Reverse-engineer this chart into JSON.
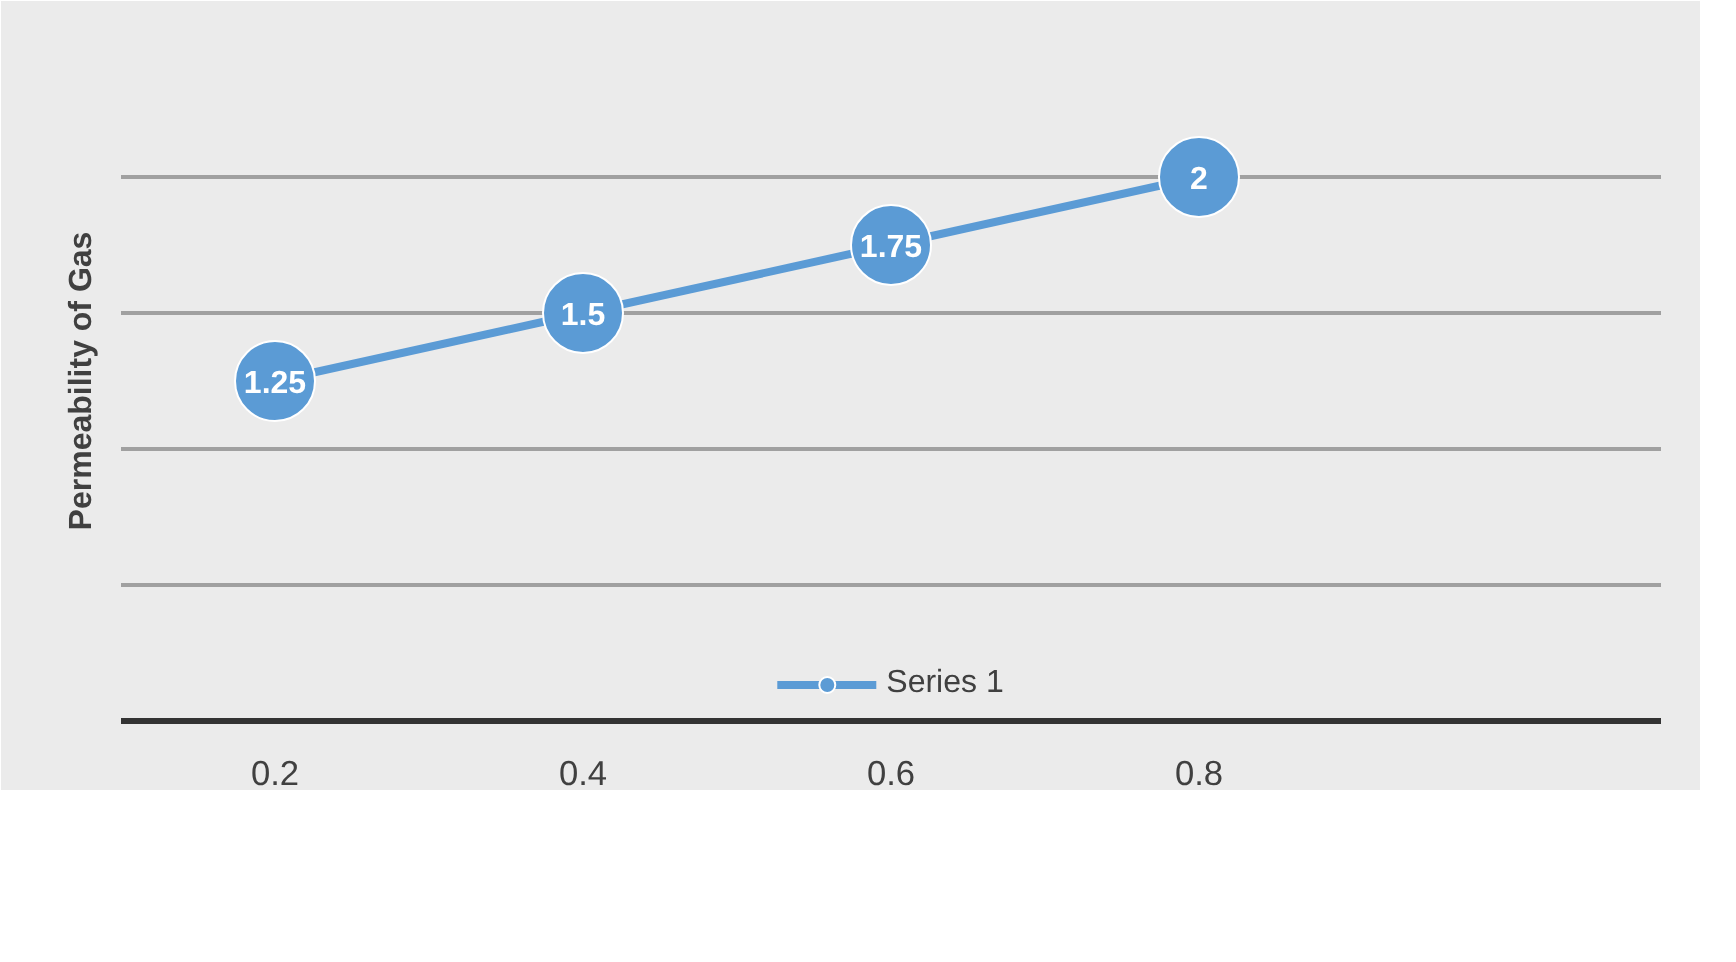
{
  "chart_data": {
    "type": "line",
    "ylabel": "Permeability of Gas",
    "categories": [
      "0.2",
      "0.4",
      "0.6",
      "0.8",
      null
    ],
    "series": [
      {
        "name": "Series 1",
        "color": "#5b9bd5",
        "values": [
          1.25,
          1.5,
          1.75,
          2,
          null
        ]
      }
    ],
    "ylim": [
      0,
      2.5
    ],
    "yticks": [
      {
        "value": 0,
        "label": null
      },
      {
        "value": 0.5,
        "label": null
      },
      {
        "value": 1,
        "label": null
      },
      {
        "value": 1.5,
        "label": null
      },
      {
        "value": 2,
        "label": null
      },
      {
        "value": 2.5,
        "label": null
      }
    ],
    "tick_labels": "x",
    "grid": "y",
    "legend": "bottom",
    "marker": "circle",
    "line_style": "solid",
    "data_labels": true
  }
}
